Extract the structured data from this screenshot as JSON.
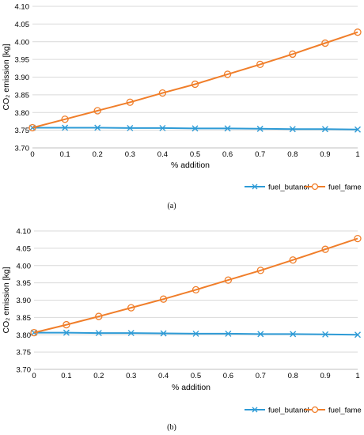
{
  "chart_data": [
    {
      "type": "line",
      "panel_label": "(a)",
      "xlabel": "% addition",
      "ylabel": "CO₂ emission [kg]",
      "x": [
        0,
        0.1,
        0.2,
        0.3,
        0.4,
        0.5,
        0.6,
        0.7,
        0.8,
        0.9,
        1
      ],
      "x_ticks": [
        "0",
        "0.1",
        "0.2",
        "0.3",
        "0.4",
        "0.5",
        "0.6",
        "0.7",
        "0.8",
        "0.9",
        "1"
      ],
      "ylim": [
        3.7,
        4.1
      ],
      "y_ticks": [
        "3.70",
        "3.75",
        "3.80",
        "3.85",
        "3.90",
        "3.95",
        "4.00",
        "4.05",
        "4.10"
      ],
      "grid": "horizontal",
      "legend_position": "bottom-right",
      "series": [
        {
          "name": "fuel_butanol",
          "color": "#2E9BD6",
          "marker": "x",
          "values": [
            3.757,
            3.757,
            3.757,
            3.756,
            3.756,
            3.755,
            3.755,
            3.754,
            3.753,
            3.753,
            3.752
          ]
        },
        {
          "name": "fuel_fame",
          "color": "#F07E2A",
          "marker": "circle",
          "values": [
            3.757,
            3.781,
            3.805,
            3.829,
            3.855,
            3.88,
            3.908,
            3.936,
            3.965,
            3.996,
            4.027
          ]
        }
      ]
    },
    {
      "type": "line",
      "panel_label": "(b)",
      "xlabel": "% addition",
      "ylabel": "CO₂ emission [kg]",
      "x": [
        0,
        0.1,
        0.2,
        0.3,
        0.4,
        0.5,
        0.6,
        0.7,
        0.8,
        0.9,
        1
      ],
      "x_ticks": [
        "0",
        "0.1",
        "0.2",
        "0.3",
        "0.4",
        "0.5",
        "0.6",
        "0.7",
        "0.8",
        "0.9",
        "1"
      ],
      "ylim": [
        3.7,
        4.1
      ],
      "y_ticks": [
        "3.70",
        "3.75",
        "3.80",
        "3.85",
        "3.90",
        "3.95",
        "4.00",
        "4.05",
        "4.10"
      ],
      "grid": "horizontal",
      "legend_position": "bottom-right",
      "series": [
        {
          "name": "fuel_butanol",
          "color": "#2E9BD6",
          "marker": "x",
          "values": [
            3.806,
            3.806,
            3.805,
            3.805,
            3.804,
            3.803,
            3.803,
            3.802,
            3.802,
            3.801,
            3.8
          ]
        },
        {
          "name": "fuel_fame",
          "color": "#F07E2A",
          "marker": "circle",
          "values": [
            3.806,
            3.829,
            3.853,
            3.878,
            3.903,
            3.93,
            3.958,
            3.986,
            4.016,
            4.047,
            4.078
          ]
        }
      ]
    }
  ]
}
